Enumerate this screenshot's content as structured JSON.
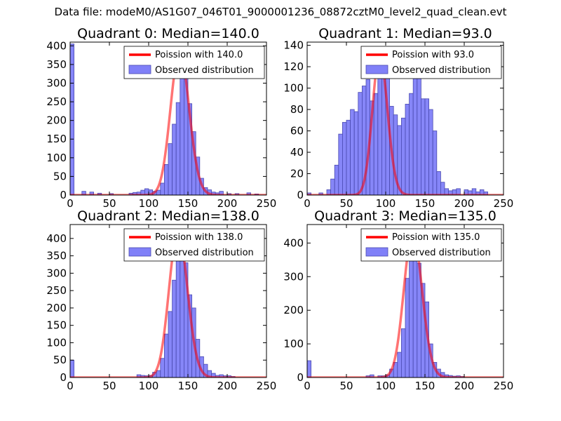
{
  "figure": {
    "suptitle": "Data file: modeM0/AS1G07_046T01_9000001236_08872cztM0_level2_quad_clean.evt"
  },
  "colors": {
    "bar_fill": "#8080f8",
    "bar_edge": "#4a4ab0",
    "poisson_line": "#ff0000"
  },
  "chart_data": [
    {
      "type": "bar",
      "title": "Quadrant 0: Median=140.0",
      "xlim": [
        0,
        250
      ],
      "ylim": [
        0,
        410
      ],
      "xticks": [
        0,
        50,
        100,
        150,
        200,
        250
      ],
      "yticks": [
        0,
        50,
        100,
        150,
        200,
        250,
        300,
        350,
        400
      ],
      "bin_width": 5,
      "legend": [
        "Poission with 140.0",
        "Observed distribution"
      ],
      "poisson": {
        "mean": 140.0,
        "peak": 385
      },
      "bins": [
        [
          0,
          405
        ],
        [
          15,
          10
        ],
        [
          25,
          8
        ],
        [
          35,
          5
        ],
        [
          50,
          4
        ],
        [
          75,
          5
        ],
        [
          80,
          7
        ],
        [
          85,
          8
        ],
        [
          90,
          13
        ],
        [
          95,
          17
        ],
        [
          100,
          14
        ],
        [
          105,
          10
        ],
        [
          110,
          13
        ],
        [
          115,
          32
        ],
        [
          120,
          82
        ],
        [
          125,
          138
        ],
        [
          130,
          190
        ],
        [
          135,
          248
        ],
        [
          140,
          346
        ],
        [
          145,
          340
        ],
        [
          150,
          245
        ],
        [
          155,
          170
        ],
        [
          160,
          102
        ],
        [
          165,
          45
        ],
        [
          170,
          20
        ],
        [
          175,
          14
        ],
        [
          180,
          8
        ],
        [
          185,
          6
        ],
        [
          190,
          10
        ],
        [
          200,
          4
        ],
        [
          210,
          4
        ],
        [
          225,
          6
        ],
        [
          235,
          3
        ]
      ]
    },
    {
      "type": "bar",
      "title": "Quadrant 1: Median=93.0",
      "xlim": [
        0,
        250
      ],
      "ylim": [
        0,
        143
      ],
      "xticks": [
        0,
        50,
        100,
        150,
        200,
        250
      ],
      "yticks": [
        0,
        20,
        40,
        60,
        80,
        100,
        120,
        140
      ],
      "bin_width": 5,
      "legend": [
        "Poission with 93.0",
        "Observed distribution"
      ],
      "poisson": {
        "mean": 93.0,
        "peak": 131
      },
      "bins": [
        [
          0,
          2
        ],
        [
          15,
          2
        ],
        [
          25,
          5
        ],
        [
          30,
          15
        ],
        [
          35,
          28
        ],
        [
          40,
          57
        ],
        [
          45,
          68
        ],
        [
          50,
          70
        ],
        [
          55,
          80
        ],
        [
          60,
          78
        ],
        [
          65,
          96
        ],
        [
          70,
          102
        ],
        [
          75,
          108
        ],
        [
          80,
          88
        ],
        [
          85,
          95
        ],
        [
          90,
          120
        ],
        [
          95,
          112
        ],
        [
          100,
          115
        ],
        [
          105,
          83
        ],
        [
          110,
          75
        ],
        [
          115,
          65
        ],
        [
          120,
          72
        ],
        [
          125,
          85
        ],
        [
          130,
          95
        ],
        [
          135,
          117
        ],
        [
          140,
          122
        ],
        [
          145,
          90
        ],
        [
          150,
          90
        ],
        [
          155,
          80
        ],
        [
          160,
          60
        ],
        [
          165,
          22
        ],
        [
          170,
          12
        ],
        [
          175,
          6
        ],
        [
          180,
          4
        ],
        [
          185,
          5
        ],
        [
          190,
          6
        ],
        [
          200,
          5
        ],
        [
          205,
          4
        ],
        [
          210,
          6
        ],
        [
          215,
          3
        ],
        [
          220,
          5
        ],
        [
          225,
          3
        ]
      ]
    },
    {
      "type": "bar",
      "title": "Quadrant 2: Median=138.0",
      "xlim": [
        0,
        250
      ],
      "ylim": [
        0,
        440
      ],
      "xticks": [
        0,
        50,
        100,
        150,
        200,
        250
      ],
      "yticks": [
        0,
        50,
        100,
        150,
        200,
        250,
        300,
        350,
        400
      ],
      "bin_width": 5,
      "legend": [
        "Poission with 138.0",
        "Observed distribution"
      ],
      "poisson": {
        "mean": 138.0,
        "peak": 420
      },
      "bins": [
        [
          0,
          50
        ],
        [
          85,
          8
        ],
        [
          90,
          6
        ],
        [
          95,
          5
        ],
        [
          100,
          6
        ],
        [
          105,
          15
        ],
        [
          110,
          20
        ],
        [
          115,
          55
        ],
        [
          120,
          125
        ],
        [
          125,
          190
        ],
        [
          130,
          280
        ],
        [
          135,
          370
        ],
        [
          140,
          390
        ],
        [
          145,
          330
        ],
        [
          150,
          238
        ],
        [
          155,
          200
        ],
        [
          160,
          110
        ],
        [
          165,
          60
        ],
        [
          170,
          38
        ],
        [
          175,
          20
        ],
        [
          180,
          12
        ],
        [
          185,
          6
        ],
        [
          190,
          8
        ],
        [
          195,
          5
        ],
        [
          200,
          5
        ],
        [
          205,
          3
        ]
      ]
    },
    {
      "type": "bar",
      "title": "Quadrant 3: Median=135.0",
      "xlim": [
        0,
        250
      ],
      "ylim": [
        0,
        455
      ],
      "xticks": [
        0,
        50,
        100,
        150,
        200,
        250
      ],
      "yticks": [
        0,
        100,
        200,
        300,
        400
      ],
      "bin_width": 5,
      "legend": [
        "Poission with 135.0",
        "Observed distribution"
      ],
      "poisson": {
        "mean": 135.0,
        "peak": 430
      },
      "bins": [
        [
          0,
          50
        ],
        [
          75,
          5
        ],
        [
          80,
          8
        ],
        [
          90,
          5
        ],
        [
          95,
          5
        ],
        [
          100,
          8
        ],
        [
          105,
          25
        ],
        [
          110,
          45
        ],
        [
          115,
          75
        ],
        [
          120,
          145
        ],
        [
          125,
          295
        ],
        [
          130,
          395
        ],
        [
          135,
          410
        ],
        [
          140,
          340
        ],
        [
          145,
          280
        ],
        [
          150,
          225
        ],
        [
          155,
          100
        ],
        [
          160,
          45
        ],
        [
          165,
          25
        ],
        [
          170,
          15
        ],
        [
          175,
          8
        ],
        [
          180,
          6
        ],
        [
          185,
          4
        ],
        [
          190,
          5
        ],
        [
          195,
          3
        ]
      ]
    }
  ]
}
